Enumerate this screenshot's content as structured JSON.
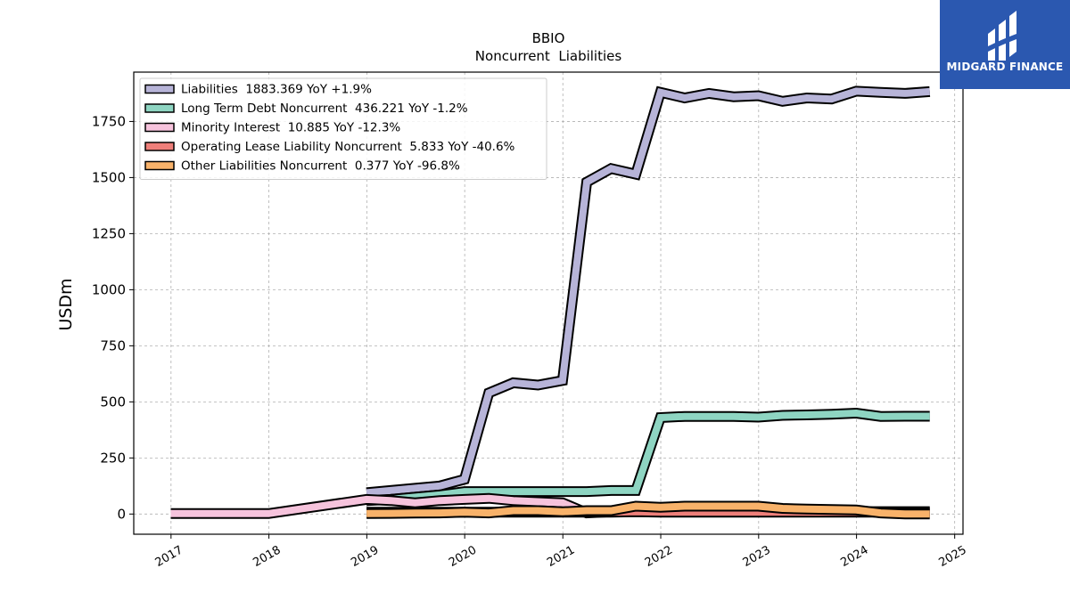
{
  "brand": {
    "name": "MIDGARD FINANCE",
    "background": "#2b58b0"
  },
  "chart_data": {
    "type": "line",
    "title": "BBIO",
    "subtitle": "Noncurrent  Liabilities",
    "xlabel": "",
    "ylabel": "USDm",
    "xlim": [
      "2016-08-15",
      "2025-02-01"
    ],
    "ylim": [
      -90,
      1970
    ],
    "xticks": [
      "2017",
      "2018",
      "2019",
      "2020",
      "2021",
      "2022",
      "2023",
      "2024",
      "2025"
    ],
    "yticks": [
      0,
      250,
      500,
      750,
      1000,
      1250,
      1500,
      1750
    ],
    "grid": true,
    "legend_position": "top-left",
    "series": [
      {
        "name": "Liabilities",
        "legend": "Liabilities  1883.369 YoY +1.9%",
        "color": "#b7b4d8",
        "x": [
          "2018-12-31",
          "2019-03-31",
          "2019-06-30",
          "2019-09-30",
          "2019-12-31",
          "2020-03-31",
          "2020-06-30",
          "2020-09-30",
          "2020-12-31",
          "2021-03-31",
          "2021-06-30",
          "2021-09-30",
          "2021-12-31",
          "2022-03-31",
          "2022-06-30",
          "2022-09-30",
          "2022-12-31",
          "2023-03-31",
          "2023-06-30",
          "2023-09-30",
          "2023-12-31",
          "2024-03-31",
          "2024-06-30",
          "2024-09-30"
        ],
        "values": [
          95,
          105,
          115,
          125,
          155,
          540,
          585,
          575,
          595,
          1480,
          1540,
          1515,
          1880,
          1855,
          1875,
          1860,
          1865,
          1840,
          1855,
          1850,
          1885,
          1880,
          1875,
          1883
        ]
      },
      {
        "name": "Long Term Debt Noncurrent",
        "legend": "Long Term Debt Noncurrent  436.221 YoY -1.2%",
        "color": "#8ed5c2",
        "x": [
          "2018-12-31",
          "2019-03-31",
          "2019-06-30",
          "2019-09-30",
          "2019-12-31",
          "2020-03-31",
          "2020-06-30",
          "2020-09-30",
          "2020-12-31",
          "2021-03-31",
          "2021-06-30",
          "2021-09-30",
          "2021-12-31",
          "2022-03-31",
          "2022-06-30",
          "2022-09-30",
          "2022-12-31",
          "2023-03-31",
          "2023-06-30",
          "2023-09-30",
          "2023-12-31",
          "2024-03-31",
          "2024-06-30",
          "2024-09-30"
        ],
        "values": [
          60,
          65,
          75,
          85,
          100,
          100,
          100,
          100,
          100,
          100,
          105,
          105,
          430,
          435,
          435,
          435,
          432,
          440,
          442,
          445,
          450,
          435,
          436,
          436
        ]
      },
      {
        "name": "Minority Interest",
        "legend": "Minority Interest  10.885 YoY -12.3%",
        "color": "#f6c3dc",
        "x": [
          "2016-12-31",
          "2017-12-31",
          "2018-12-31",
          "2019-03-31",
          "2019-06-30",
          "2019-09-30",
          "2019-12-31",
          "2020-03-31",
          "2020-06-30",
          "2020-09-30",
          "2020-12-31",
          "2021-03-31",
          "2021-06-30",
          "2021-09-30",
          "2021-12-31",
          "2022-03-31",
          "2022-06-30",
          "2022-09-30",
          "2022-12-31",
          "2023-03-31",
          "2023-06-30",
          "2023-09-30",
          "2023-12-31",
          "2024-03-31",
          "2024-06-30",
          "2024-09-30"
        ],
        "values": [
          2,
          2,
          65,
          60,
          50,
          60,
          65,
          70,
          60,
          55,
          50,
          5,
          10,
          15,
          12,
          10,
          10,
          10,
          10,
          12,
          12,
          12,
          11,
          11,
          11,
          11
        ]
      },
      {
        "name": "Operating Lease Liability Noncurrent",
        "legend": "Operating Lease Liability Noncurrent  5.833 YoY -40.6%",
        "color": "#ee7f7a",
        "x": [
          "2018-12-31",
          "2019-03-31",
          "2019-06-30",
          "2019-09-30",
          "2019-12-31",
          "2020-03-31",
          "2020-06-30",
          "2020-09-30",
          "2020-12-31",
          "2021-03-31",
          "2021-06-30",
          "2021-09-30",
          "2021-12-31",
          "2022-03-31",
          "2022-06-30",
          "2022-09-30",
          "2022-12-31",
          "2023-03-31",
          "2023-06-30",
          "2023-09-30",
          "2023-12-31",
          "2024-03-31",
          "2024-06-30",
          "2024-09-30"
        ],
        "values": [
          8,
          8,
          8,
          8,
          8,
          8,
          8,
          8,
          8,
          8,
          8,
          10,
          8,
          8,
          8,
          8,
          8,
          8,
          8,
          8,
          8,
          8,
          6,
          6
        ]
      },
      {
        "name": "Other Liabilities Noncurrent",
        "legend": "Other Liabilities Noncurrent  0.377 YoY -96.8%",
        "color": "#f8b26a",
        "x": [
          "2018-12-31",
          "2019-03-31",
          "2019-06-30",
          "2019-09-30",
          "2019-12-31",
          "2020-03-31",
          "2020-06-30",
          "2020-09-30",
          "2020-12-31",
          "2021-03-31",
          "2021-06-30",
          "2021-09-30",
          "2021-12-31",
          "2022-03-31",
          "2022-06-30",
          "2022-09-30",
          "2022-12-31",
          "2023-03-31",
          "2023-06-30",
          "2023-09-30",
          "2023-12-31",
          "2024-03-31",
          "2024-06-30",
          "2024-09-30"
        ],
        "values": [
          2,
          3,
          4,
          5,
          8,
          5,
          15,
          15,
          10,
          15,
          15,
          35,
          30,
          35,
          35,
          35,
          35,
          25,
          22,
          20,
          18,
          5,
          0.4,
          0.4
        ]
      }
    ]
  }
}
